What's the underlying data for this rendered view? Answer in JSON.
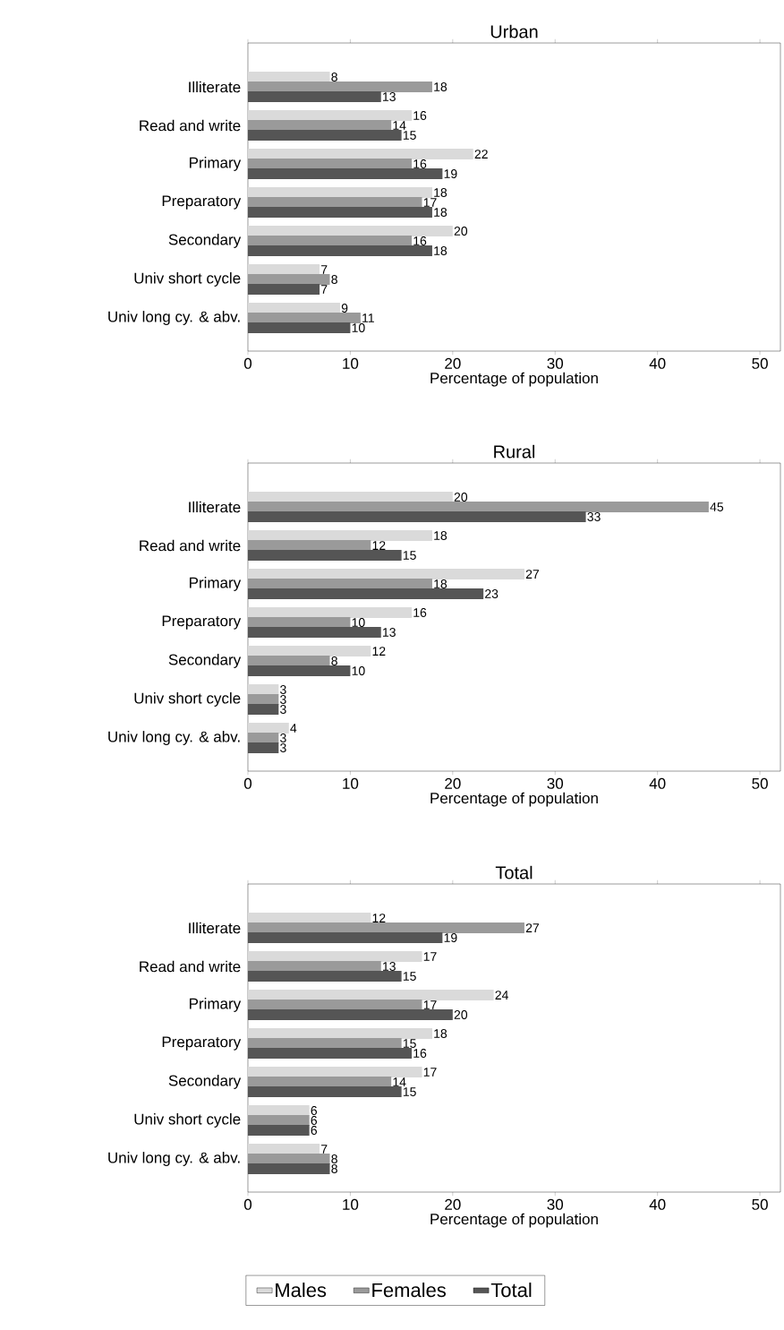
{
  "chart_data": [
    {
      "type": "bar",
      "orientation": "horizontal",
      "title": "Urban",
      "xlabel": "Percentage of population",
      "categories": [
        "Illiterate",
        "Read and write",
        "Primary",
        "Preparatory",
        "Secondary",
        "Univ short cycle",
        "Univ long cy. & abv."
      ],
      "xlim": [
        0,
        52
      ],
      "xticks": [
        0,
        10,
        20,
        30,
        40,
        50
      ],
      "data_labels": true,
      "legend": false,
      "series": [
        {
          "color": "#dadada",
          "values": [
            8,
            16,
            22,
            18,
            20,
            7,
            9
          ]
        },
        {
          "color": "#9a9a9a",
          "values": [
            18,
            14,
            16,
            17,
            16,
            8,
            11
          ]
        },
        {
          "color": "#555555",
          "values": [
            13,
            15,
            19,
            18,
            18,
            7,
            10
          ]
        }
      ]
    },
    {
      "type": "bar",
      "orientation": "horizontal",
      "title": "Rural",
      "xlabel": "Percentage of population",
      "categories": [
        "Illiterate",
        "Read and write",
        "Primary",
        "Preparatory",
        "Secondary",
        "Univ short cycle",
        "Univ long cy. & abv."
      ],
      "xlim": [
        0,
        52
      ],
      "xticks": [
        0,
        10,
        20,
        30,
        40,
        50
      ],
      "data_labels": true,
      "legend": false,
      "series": [
        {
          "color": "#dadada",
          "values": [
            20,
            18,
            27,
            16,
            12,
            3,
            4
          ]
        },
        {
          "color": "#9a9a9a",
          "values": [
            45,
            12,
            18,
            10,
            8,
            3,
            3
          ]
        },
        {
          "color": "#555555",
          "values": [
            33,
            15,
            23,
            13,
            10,
            3,
            3
          ]
        }
      ]
    },
    {
      "type": "bar",
      "orientation": "horizontal",
      "title": "Total",
      "xlabel": "Percentage of population",
      "categories": [
        "Illiterate",
        "Read and write",
        "Primary",
        "Preparatory",
        "Secondary",
        "Univ short cycle",
        "Univ long cy. & abv."
      ],
      "xlim": [
        0,
        52
      ],
      "xticks": [
        0,
        10,
        20,
        30,
        40,
        50
      ],
      "data_labels": true,
      "legend": "bottom",
      "series": [
        {
          "name": "Males",
          "color": "#dadada",
          "values": [
            12,
            17,
            24,
            18,
            17,
            6,
            7
          ]
        },
        {
          "name": "Females",
          "color": "#9a9a9a",
          "values": [
            27,
            13,
            17,
            15,
            14,
            6,
            8
          ]
        },
        {
          "name": "Total",
          "color": "#555555",
          "values": [
            19,
            15,
            20,
            16,
            15,
            6,
            8
          ]
        }
      ]
    }
  ]
}
